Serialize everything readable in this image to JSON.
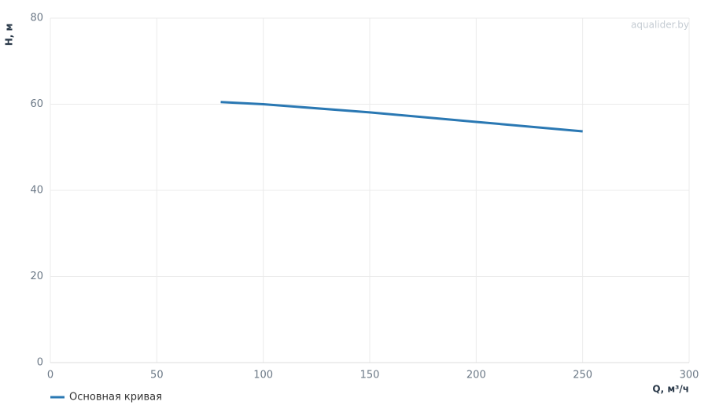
{
  "chart_data": {
    "type": "line",
    "watermark": "aqualider.by",
    "x_label": "Q, м³/ч",
    "y_label": "H, м",
    "x": [
      80,
      100,
      150,
      200,
      250
    ],
    "series": [
      {
        "name": "Основная кривая",
        "color": "#2a78b3",
        "values": [
          60.5,
          60,
          58.1,
          55.9,
          53.7
        ]
      }
    ],
    "xlim": [
      0,
      300
    ],
    "xticks": [
      0,
      50,
      100,
      150,
      200,
      250,
      300
    ],
    "ylim": [
      0,
      80
    ],
    "yticks": [
      0,
      20,
      40,
      60,
      80
    ],
    "grid": true,
    "legend": "bottom-left"
  }
}
